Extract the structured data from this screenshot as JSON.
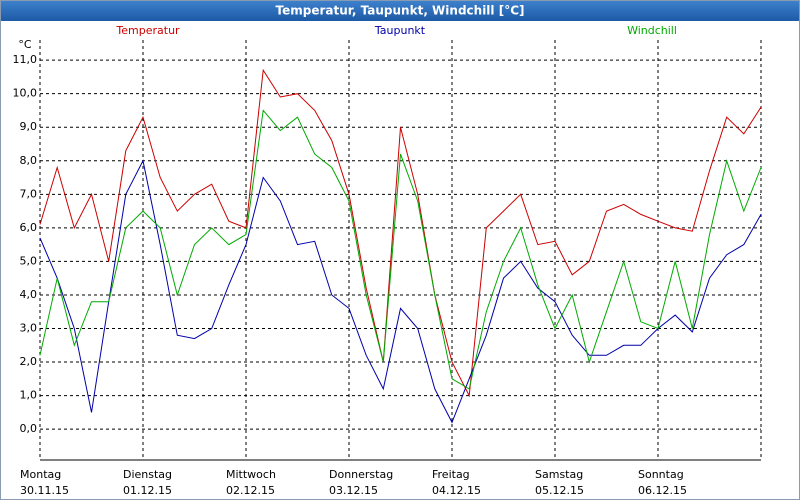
{
  "chart_data": {
    "type": "line",
    "title": "Temperatur, Taupunkt, Windchill [°C]",
    "y_label": "°C",
    "x": [
      0,
      4,
      8,
      12,
      16,
      20,
      24,
      28,
      32,
      36,
      40,
      44,
      48,
      52,
      56,
      60,
      64,
      68,
      72,
      76,
      80,
      84,
      88,
      92,
      96,
      100,
      104,
      108,
      112,
      116,
      120,
      124,
      128,
      132,
      136,
      140,
      144,
      148,
      152,
      156,
      160,
      164,
      168
    ],
    "series": [
      {
        "name": "Temperatur",
        "color": "#cc0000",
        "values": [
          6.1,
          7.8,
          6.0,
          7.0,
          5.0,
          8.3,
          9.3,
          7.5,
          6.5,
          7.0,
          7.3,
          6.2,
          6.0,
          10.7,
          9.9,
          10.0,
          9.5,
          8.6,
          7.0,
          4.2,
          2.0,
          9.0,
          7.0,
          4.0,
          2.0,
          1.0,
          6.0,
          6.5,
          7.0,
          5.5,
          5.6,
          4.6,
          5.0,
          6.5,
          6.7,
          6.4,
          6.2,
          6.0,
          5.9,
          7.7,
          9.3,
          8.8,
          9.6
        ]
      },
      {
        "name": "Taupunkt",
        "color": "#0000aa",
        "values": [
          5.7,
          4.5,
          3.0,
          0.5,
          3.8,
          7.0,
          8.0,
          5.5,
          2.8,
          2.7,
          3.0,
          4.3,
          5.5,
          7.5,
          6.8,
          5.5,
          5.6,
          4.0,
          3.6,
          2.2,
          1.2,
          3.6,
          3.0,
          1.2,
          0.2,
          1.5,
          2.8,
          4.5,
          5.0,
          4.2,
          3.8,
          2.8,
          2.2,
          2.2,
          2.5,
          2.5,
          3.0,
          3.4,
          2.9,
          4.5,
          5.2,
          5.5,
          6.4
        ]
      },
      {
        "name": "Windchill",
        "color": "#00aa00",
        "values": [
          2.2,
          4.5,
          2.5,
          3.8,
          3.8,
          6.0,
          6.5,
          6.0,
          4.0,
          5.5,
          6.0,
          5.5,
          5.8,
          9.5,
          8.9,
          9.3,
          8.2,
          7.8,
          6.8,
          4.0,
          2.0,
          8.2,
          6.8,
          4.0,
          1.5,
          1.2,
          3.5,
          5.0,
          6.0,
          4.3,
          3.0,
          4.0,
          2.0,
          3.5,
          5.0,
          3.2,
          3.0,
          5.0,
          3.0,
          5.8,
          8.0,
          6.5,
          7.8
        ]
      }
    ],
    "xlim": [
      0,
      168
    ],
    "xticks": [
      {
        "value": 0,
        "label": "Montag\n30.11.15"
      },
      {
        "value": 24,
        "label": "Dienstag\n01.12.15"
      },
      {
        "value": 48,
        "label": "Mittwoch\n02.12.15"
      },
      {
        "value": 72,
        "label": "Donnerstag\n03.12.15"
      },
      {
        "value": 96,
        "label": "Freitag\n04.12.15"
      },
      {
        "value": 120,
        "label": "Samstag\n05.12.15"
      },
      {
        "value": 144,
        "label": "Sonntag\n06.12.15"
      }
    ],
    "ylim": [
      -0.92,
      11.6
    ],
    "yticks": [
      {
        "value": 0,
        "label": "0,0"
      },
      {
        "value": 1,
        "label": "1,0"
      },
      {
        "value": 2,
        "label": "2,0"
      },
      {
        "value": 3,
        "label": "3,0"
      },
      {
        "value": 4,
        "label": "4,0"
      },
      {
        "value": 5,
        "label": "5,0"
      },
      {
        "value": 6,
        "label": "6,0"
      },
      {
        "value": 7,
        "label": "7,0"
      },
      {
        "value": 8,
        "label": "8,0"
      },
      {
        "value": 9,
        "label": "9,0"
      },
      {
        "value": 10,
        "label": "10,0"
      },
      {
        "value": 11,
        "label": "11,0"
      }
    ],
    "grid": true
  }
}
